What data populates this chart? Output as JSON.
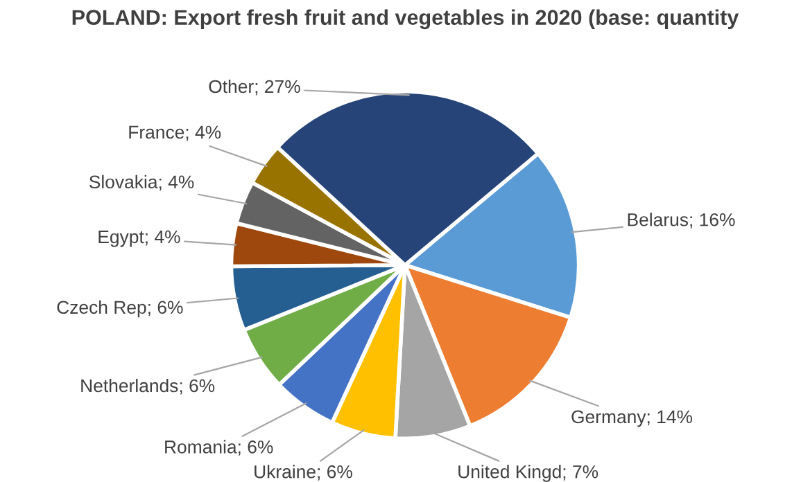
{
  "chart_data": {
    "type": "pie",
    "title": "POLAND: Export fresh fruit and vegetables in 2020 (base: quantity",
    "categories": [
      "Belarus",
      "Germany",
      "United Kingd",
      "Ukraine",
      "Romania",
      "Netherlands",
      "Czech Rep",
      "Egypt",
      "Slovakia",
      "France",
      "Other"
    ],
    "values": [
      16,
      14,
      7,
      6,
      6,
      6,
      6,
      4,
      4,
      4,
      27
    ],
    "value_labels": [
      "16%",
      "14%",
      "7%",
      "6%",
      "6%",
      "6%",
      "6%",
      "4%",
      "4%",
      "4%",
      "27%"
    ],
    "colors": [
      "#5b9bd5",
      "#ed7d31",
      "#a5a5a5",
      "#ffc000",
      "#4472c4",
      "#70ad47",
      "#255e91",
      "#9e480e",
      "#636363",
      "#997300",
      "#264478"
    ],
    "legend": false
  }
}
